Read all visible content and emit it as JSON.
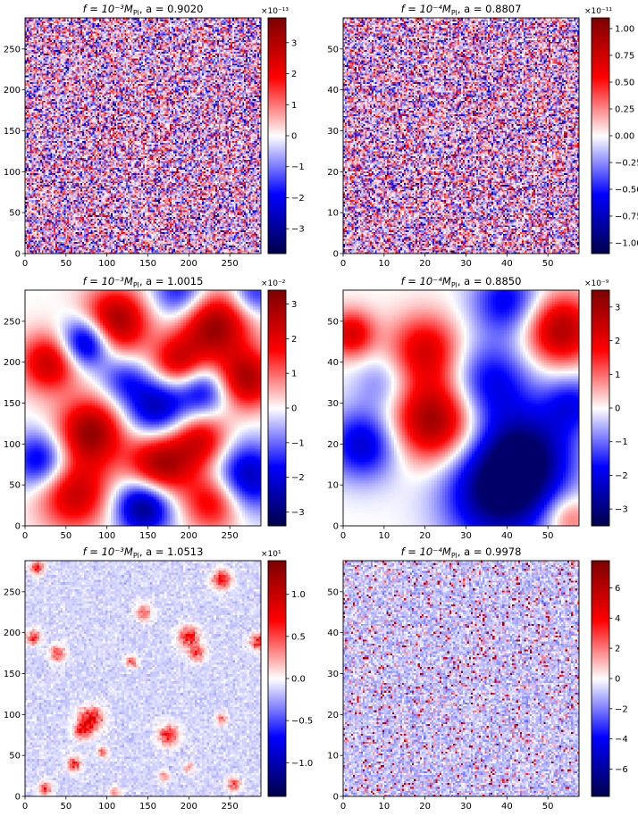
{
  "figure": {
    "colormap": "seismic",
    "colormap_stops": [
      "#00004c",
      "#0000ff",
      "#ffffff",
      "#ff0000",
      "#800000"
    ]
  },
  "chart_data": [
    {
      "type": "heatmap",
      "title_f": "f = 10⁻³M",
      "title_sub": "Pl",
      "title_a": ",  a = 0.9020",
      "pattern": "noise",
      "grid_resolution": 140,
      "xlim": [
        0,
        288
      ],
      "ylim": [
        0,
        288
      ],
      "xticks": [
        "0",
        "50",
        "100",
        "150",
        "200",
        "250"
      ],
      "xtick_values": [
        0,
        50,
        100,
        150,
        200,
        250
      ],
      "yticks": [
        "0",
        "50",
        "100",
        "150",
        "200",
        "250"
      ],
      "ytick_values": [
        0,
        50,
        100,
        150,
        200,
        250
      ],
      "colorbar": {
        "range": [
          -3.8,
          3.8
        ],
        "offset_text": "×10⁻¹³",
        "ticks": [
          "−3",
          "−2",
          "−1",
          "0",
          "1",
          "2",
          "3"
        ],
        "tick_values": [
          -3,
          -2,
          -1,
          0,
          1,
          2,
          3
        ]
      }
    },
    {
      "type": "heatmap",
      "title_f": "f = 10⁻⁴M",
      "title_sub": "Pl",
      "title_a": ",  a = 0.8807",
      "pattern": "noise",
      "grid_resolution": 140,
      "xlim": [
        0,
        57.6
      ],
      "ylim": [
        0,
        57.6
      ],
      "xticks": [
        "0",
        "10",
        "20",
        "30",
        "40",
        "50"
      ],
      "xtick_values": [
        0,
        10,
        20,
        30,
        40,
        50
      ],
      "yticks": [
        "0",
        "10",
        "20",
        "30",
        "40",
        "50"
      ],
      "ytick_values": [
        0,
        10,
        20,
        30,
        40,
        50
      ],
      "colorbar": {
        "range": [
          -1.1,
          1.1
        ],
        "offset_text": "×10⁻¹¹",
        "ticks": [
          "−1.00",
          "−0.75",
          "−0.50",
          "−0.25",
          "0.00",
          "0.25",
          "0.50",
          "0.75",
          "1.00"
        ],
        "tick_values": [
          -1.0,
          -0.75,
          -0.5,
          -0.25,
          0.0,
          0.25,
          0.5,
          0.75,
          1.0
        ]
      }
    },
    {
      "type": "heatmap",
      "title_f": "f = 10⁻³M",
      "title_sub": "Pl",
      "title_a": ",  a = 1.0015",
      "pattern": "smooth_blobs",
      "xlim": [
        0,
        288
      ],
      "ylim": [
        0,
        288
      ],
      "xticks": [
        "0",
        "50",
        "100",
        "150",
        "200",
        "250"
      ],
      "xtick_values": [
        0,
        50,
        100,
        150,
        200,
        250
      ],
      "yticks": [
        "0",
        "50",
        "100",
        "150",
        "200",
        "250"
      ],
      "ytick_values": [
        0,
        50,
        100,
        150,
        200,
        250
      ],
      "colorbar": {
        "range": [
          -3.4,
          3.4
        ],
        "offset_text": "×10⁻²",
        "ticks": [
          "−3",
          "−2",
          "−1",
          "0",
          "1",
          "2",
          "3"
        ],
        "tick_values": [
          -3,
          -2,
          -1,
          0,
          1,
          2,
          3
        ]
      },
      "features": [
        {
          "x": 110,
          "y": 250,
          "v": 1.0,
          "s": 28
        },
        {
          "x": 230,
          "y": 245,
          "v": 1.0,
          "s": 30
        },
        {
          "x": 30,
          "y": 200,
          "v": 0.8,
          "s": 25
        },
        {
          "x": 80,
          "y": 115,
          "v": 1.0,
          "s": 28
        },
        {
          "x": 165,
          "y": 75,
          "v": 1.0,
          "s": 28
        },
        {
          "x": 215,
          "y": 105,
          "v": 0.7,
          "s": 24
        },
        {
          "x": 270,
          "y": 180,
          "v": 0.9,
          "s": 25
        },
        {
          "x": 185,
          "y": 200,
          "v": 0.7,
          "s": 22
        },
        {
          "x": 60,
          "y": 40,
          "v": 0.8,
          "s": 30
        },
        {
          "x": 230,
          "y": 30,
          "v": 0.7,
          "s": 25
        },
        {
          "x": 75,
          "y": 225,
          "v": -1.0,
          "s": 22
        },
        {
          "x": 160,
          "y": 145,
          "v": -0.8,
          "s": 28
        },
        {
          "x": 145,
          "y": 25,
          "v": -1.0,
          "s": 25
        },
        {
          "x": 270,
          "y": 60,
          "v": -0.8,
          "s": 30
        },
        {
          "x": 20,
          "y": 80,
          "v": -0.7,
          "s": 25
        },
        {
          "x": 220,
          "y": 165,
          "v": -0.6,
          "s": 22
        },
        {
          "x": 190,
          "y": 285,
          "v": -0.6,
          "s": 25
        },
        {
          "x": 120,
          "y": 180,
          "v": -0.4,
          "s": 20
        },
        {
          "x": 280,
          "y": 285,
          "v": -0.5,
          "s": 20
        }
      ]
    },
    {
      "type": "heatmap",
      "title_f": "f = 10⁻⁴M",
      "title_sub": "Pl",
      "title_a": ",  a = 0.8850",
      "pattern": "smooth_blobs",
      "xlim": [
        0,
        57.6
      ],
      "ylim": [
        0,
        57.6
      ],
      "xticks": [
        "0",
        "10",
        "20",
        "30",
        "40",
        "50"
      ],
      "xtick_values": [
        0,
        10,
        20,
        30,
        40,
        50
      ],
      "yticks": [
        "0",
        "10",
        "20",
        "30",
        "40",
        "50"
      ],
      "ytick_values": [
        0,
        10,
        20,
        30,
        40,
        50
      ],
      "colorbar": {
        "range": [
          -3.5,
          3.5
        ],
        "offset_text": "×10⁻⁹",
        "ticks": [
          "−3",
          "−2",
          "−1",
          "0",
          "1",
          "2",
          "3"
        ],
        "tick_values": [
          -3,
          -2,
          -1,
          0,
          1,
          2,
          3
        ]
      },
      "features": [
        {
          "x": 22,
          "y": 26,
          "v": 1.0,
          "s": 7
        },
        {
          "x": 20,
          "y": 43,
          "v": 0.7,
          "s": 6
        },
        {
          "x": 53,
          "y": 48,
          "v": 0.9,
          "s": 6
        },
        {
          "x": 2,
          "y": 47,
          "v": 0.7,
          "s": 4
        },
        {
          "x": 55,
          "y": 2,
          "v": 0.4,
          "s": 4
        },
        {
          "x": 38,
          "y": 8,
          "v": -1.0,
          "s": 9
        },
        {
          "x": 45,
          "y": 18,
          "v": -0.8,
          "s": 8
        },
        {
          "x": 36,
          "y": 35,
          "v": -0.6,
          "s": 7
        },
        {
          "x": 40,
          "y": 55,
          "v": -0.6,
          "s": 6
        },
        {
          "x": 5,
          "y": 20,
          "v": -0.7,
          "s": 6
        },
        {
          "x": 10,
          "y": 35,
          "v": -0.3,
          "s": 5
        },
        {
          "x": 56,
          "y": 30,
          "v": -0.5,
          "s": 5
        }
      ]
    },
    {
      "type": "heatmap",
      "title_f": "f = 10⁻³M",
      "title_sub": "Pl",
      "title_a": ",  a = 1.0513",
      "pattern": "sparse_hotspots",
      "grid_resolution": 100,
      "xlim": [
        0,
        288
      ],
      "ylim": [
        0,
        288
      ],
      "xticks": [
        "0",
        "50",
        "100",
        "150",
        "200",
        "250"
      ],
      "xtick_values": [
        0,
        50,
        100,
        150,
        200,
        250
      ],
      "yticks": [
        "0",
        "50",
        "100",
        "150",
        "200",
        "250"
      ],
      "ytick_values": [
        0,
        50,
        100,
        150,
        200,
        250
      ],
      "colorbar": {
        "range": [
          -1.4,
          1.4
        ],
        "offset_text": "×10¹",
        "ticks": [
          "−1.0",
          "−0.5",
          "0.0",
          "0.5",
          "1.0"
        ],
        "tick_values": [
          -1.0,
          -0.5,
          0.0,
          0.5,
          1.0
        ]
      },
      "features": [
        {
          "x": 240,
          "y": 265,
          "v": 0.8,
          "s": 8
        },
        {
          "x": 15,
          "y": 280,
          "v": 0.7,
          "s": 6
        },
        {
          "x": 80,
          "y": 95,
          "v": 0.9,
          "s": 10
        },
        {
          "x": 70,
          "y": 80,
          "v": 0.7,
          "s": 7
        },
        {
          "x": 175,
          "y": 75,
          "v": 0.7,
          "s": 9
        },
        {
          "x": 200,
          "y": 195,
          "v": 0.8,
          "s": 9
        },
        {
          "x": 210,
          "y": 175,
          "v": 0.6,
          "s": 7
        },
        {
          "x": 285,
          "y": 190,
          "v": 0.8,
          "s": 7
        },
        {
          "x": 10,
          "y": 195,
          "v": 0.7,
          "s": 6
        },
        {
          "x": 40,
          "y": 175,
          "v": 0.6,
          "s": 7
        },
        {
          "x": 130,
          "y": 165,
          "v": 0.6,
          "s": 5
        },
        {
          "x": 145,
          "y": 225,
          "v": 0.5,
          "s": 7
        },
        {
          "x": 60,
          "y": 40,
          "v": 0.7,
          "s": 6
        },
        {
          "x": 25,
          "y": 10,
          "v": 0.6,
          "s": 6
        },
        {
          "x": 95,
          "y": 55,
          "v": 0.5,
          "s": 5
        },
        {
          "x": 255,
          "y": 15,
          "v": 0.6,
          "s": 6
        },
        {
          "x": 240,
          "y": 95,
          "v": 0.5,
          "s": 5
        },
        {
          "x": 170,
          "y": 25,
          "v": 0.4,
          "s": 5
        },
        {
          "x": 110,
          "y": 5,
          "v": 0.4,
          "s": 5
        },
        {
          "x": 200,
          "y": 35,
          "v": 0.4,
          "s": 5
        }
      ]
    },
    {
      "type": "heatmap",
      "title_f": "f = 10⁻⁴M",
      "title_sub": "Pl",
      "title_a": ",  a = 0.9978",
      "pattern": "speckle",
      "grid_resolution": 120,
      "xlim": [
        0,
        57.6
      ],
      "ylim": [
        0,
        57.6
      ],
      "xticks": [
        "0",
        "10",
        "20",
        "30",
        "40",
        "50"
      ],
      "xtick_values": [
        0,
        10,
        20,
        30,
        40,
        50
      ],
      "yticks": [
        "0",
        "10",
        "20",
        "30",
        "40",
        "50"
      ],
      "ytick_values": [
        0,
        10,
        20,
        30,
        40,
        50
      ],
      "colorbar": {
        "range": [
          -7.8,
          7.8
        ],
        "offset_text": "",
        "ticks": [
          "−6",
          "−4",
          "−2",
          "0",
          "2",
          "4",
          "6"
        ],
        "tick_values": [
          -6,
          -4,
          -2,
          0,
          2,
          4,
          6
        ]
      }
    }
  ]
}
